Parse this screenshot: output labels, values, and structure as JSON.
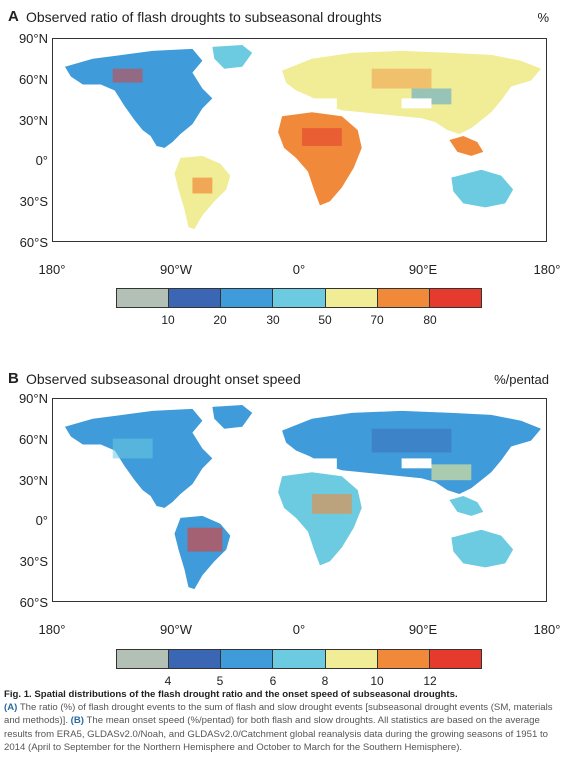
{
  "colors": {
    "gray": "#b3c0b6",
    "darkblue": "#3b66b4",
    "blue": "#3f9bd9",
    "cyan": "#6ccbe0",
    "yellow": "#f0ed96",
    "orange": "#f08a3a",
    "red": "#e63a2e"
  },
  "axes": {
    "lat_labels": [
      "90°N",
      "60°N",
      "30°N",
      "0°",
      "30°S",
      "60°S"
    ],
    "lon_labels": [
      "180°",
      "90°W",
      "0°",
      "90°E",
      "180°"
    ]
  },
  "panel_a": {
    "letter": "A",
    "title": "Observed ratio of flash droughts to subseasonal droughts",
    "unit": "%",
    "colorbar_labels": [
      "10",
      "20",
      "30",
      "50",
      "70",
      "80"
    ]
  },
  "panel_b": {
    "letter": "B",
    "title": "Observed subseasonal drought onset speed",
    "unit": "%/pentad",
    "colorbar_labels": [
      "4",
      "5",
      "6",
      "8",
      "10",
      "12"
    ]
  },
  "caption": {
    "title": "Fig. 1. Spatial distributions of the flash drought ratio and the onset speed of subseasonal droughts.",
    "key_a": "(A)",
    "text_a": " The ratio (%) of flash drought events to the sum of flash and slow drought events [subseasonal drought events (SM, materials and methods)]. ",
    "key_b": "(B)",
    "text_b": " The mean onset speed (%/pentad) for both flash and slow droughts. All statistics are based on the average results from ERA5, GLDASv2.0/Noah, and GLDASv2.0/Catchment global reanalysis data during the growing seasons of 1951 to 2014 (April to September for the Northern Hemisphere and October to March for the Southern Hemisphere)."
  }
}
